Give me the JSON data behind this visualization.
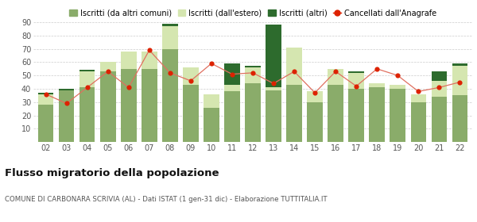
{
  "years": [
    "02",
    "03",
    "04",
    "05",
    "06",
    "07",
    "08",
    "09",
    "10",
    "11",
    "12",
    "13",
    "14",
    "15",
    "16",
    "17",
    "18",
    "19",
    "20",
    "21",
    "22"
  ],
  "iscritti_comuni": [
    28,
    39,
    41,
    53,
    55,
    55,
    70,
    43,
    26,
    38,
    44,
    39,
    43,
    30,
    43,
    40,
    41,
    40,
    30,
    34,
    35
  ],
  "iscritti_estero": [
    8,
    0,
    12,
    7,
    13,
    13,
    17,
    13,
    10,
    5,
    12,
    2,
    28,
    8,
    12,
    12,
    3,
    3,
    6,
    12,
    22
  ],
  "iscritti_altri": [
    1,
    1,
    1,
    0,
    0,
    0,
    2,
    0,
    0,
    16,
    1,
    47,
    0,
    0,
    0,
    1,
    0,
    0,
    0,
    7,
    2
  ],
  "cancellati": [
    36,
    29,
    41,
    53,
    41,
    69,
    52,
    46,
    59,
    51,
    52,
    44,
    53,
    37,
    53,
    42,
    55,
    50,
    38,
    41,
    45
  ],
  "color_comuni": "#8aac6a",
  "color_estero": "#d5e6b0",
  "color_altri": "#2d6b2d",
  "color_cancellati": "#dd2200",
  "color_line": "#e07060",
  "ylabel_max": 90,
  "yticks": [
    0,
    10,
    20,
    30,
    40,
    50,
    60,
    70,
    80,
    90
  ],
  "title": "Flusso migratorio della popolazione",
  "subtitle": "COMUNE DI CARBONARA SCRIVIA (AL) - Dati ISTAT (1 gen-31 dic) - Elaborazione TUTTITALIA.IT",
  "legend_labels": [
    "Iscritti (da altri comuni)",
    "Iscritti (dall'estero)",
    "Iscritti (altri)",
    "Cancellati dall'Anagrafe"
  ],
  "background_color": "#ffffff",
  "grid_color": "#cccccc"
}
